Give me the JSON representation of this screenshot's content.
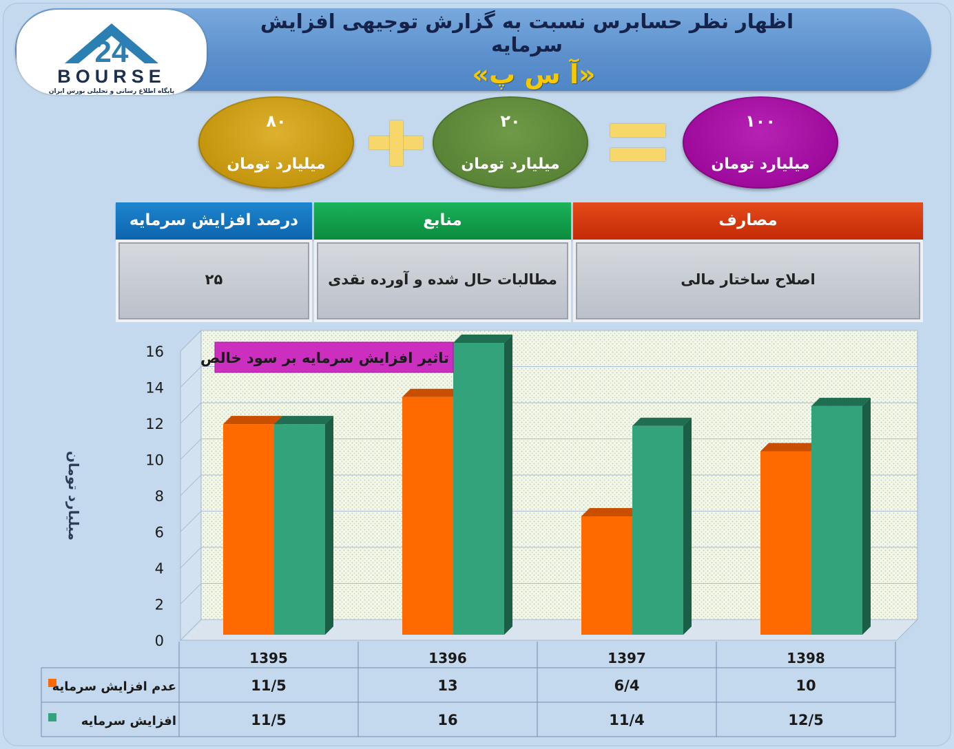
{
  "header": {
    "title": "اظهار نظر حسابرس نسبت به گزارش توجیهی افزایش سرمایه",
    "subtitle": "«آ س پ»",
    "logo_name": "BOURSE",
    "logo_number": "24",
    "logo_tagline": "پایگاه اطلاع رسانی و تحلیلی بورس ایران"
  },
  "equation": {
    "total": {
      "value": "۱۰۰",
      "unit": "میلیارد تومان",
      "color": "#9e0a9b"
    },
    "part_a": {
      "value": "۲۰",
      "unit": "میلیارد تومان",
      "color": "#5a8436"
    },
    "part_b": {
      "value": "۸۰",
      "unit": "میلیارد تومان",
      "color": "#c4960e"
    }
  },
  "info_table": {
    "headers": {
      "uses": "مصارف",
      "sources": "منابع",
      "percent": "درصد افزایش سرمایه"
    },
    "values": {
      "uses": "اصلاح ساختار مالی",
      "sources": "مطالبات حال شده و آورده نقدی",
      "percent": "۲۵"
    }
  },
  "chart_data": {
    "type": "bar",
    "title": "تاثیر افزایش سرمایه بر سود خالص",
    "ylabel": "میلیارد تومان",
    "xlabel": "",
    "ylim": [
      0,
      16
    ],
    "yticks": [
      0,
      2,
      4,
      6,
      8,
      10,
      12,
      14,
      16
    ],
    "grid": true,
    "categories": [
      "1395",
      "1396",
      "1397",
      "1398"
    ],
    "series": [
      {
        "name": "عدم افزایش سرمایه",
        "values": [
          11.5,
          13,
          6.4,
          10
        ],
        "labels": [
          "11/5",
          "13",
          "6/4",
          "10"
        ],
        "color": "#ff6a00"
      },
      {
        "name": "افزایش سرمایه",
        "values": [
          11.5,
          16,
          11.4,
          12.5
        ],
        "labels": [
          "11/5",
          "16",
          "11/4",
          "12/5"
        ],
        "color": "#33a37b"
      }
    ]
  }
}
